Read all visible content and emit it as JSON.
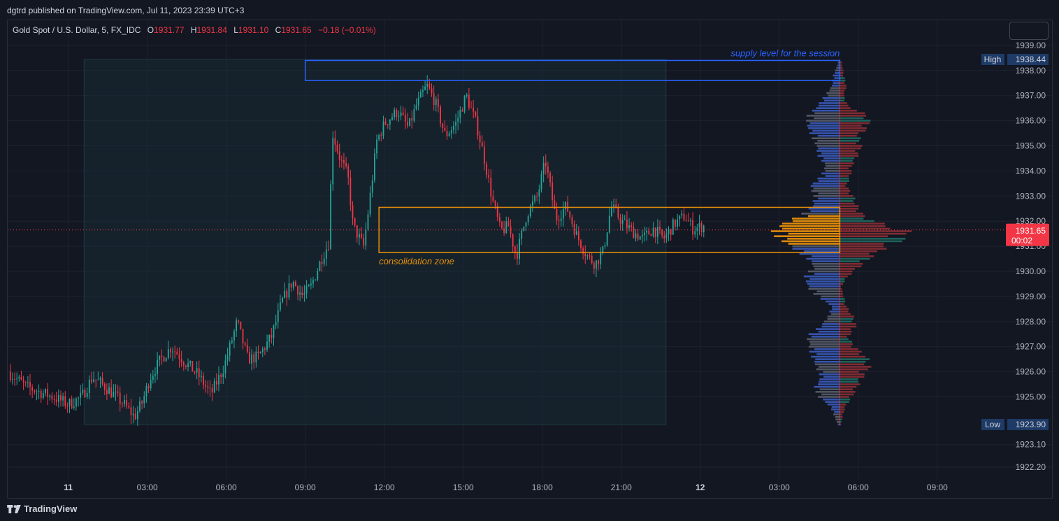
{
  "header": {
    "published": "dgtrd published on TradingView.com, Jul 11, 2023 23:39 UTC+3"
  },
  "legend": {
    "symbol": "Gold Spot / U.S. Dollar, 5, FX_IDC",
    "o_label": "O",
    "o": "1931.77",
    "h_label": "H",
    "h": "1931.84",
    "l_label": "L",
    "l": "1931.10",
    "c_label": "C",
    "c": "1931.65",
    "change": "−0.18 (−0.01%)"
  },
  "footer": {
    "brand": "TradingView"
  },
  "colors": {
    "up": "#26a69a",
    "down": "#f23645",
    "vp_buy": "#3d5fc4",
    "vp_sell": "#8b2e34",
    "vp_poc": "#e8900a",
    "supply": "#2962ff",
    "zone": "#e8900a"
  },
  "chart_data": {
    "type": "candlestick",
    "interval": "5",
    "yaxis": {
      "ticks": [
        "1922.20",
        "1923.10",
        "1925.00",
        "1926.00",
        "1927.00",
        "1928.00",
        "1929.00",
        "1930.00",
        "1931.00",
        "1932.00",
        "1933.00",
        "1934.00",
        "1935.00",
        "1936.00",
        "1937.00",
        "1938.00",
        "1939.00"
      ],
      "ylim": [
        1921.7,
        1940.0
      ]
    },
    "xaxis": {
      "ticks": [
        "11",
        "03:00",
        "06:00",
        "09:00",
        "12:00",
        "15:00",
        "18:00",
        "21:00",
        "12",
        "03:00",
        "06:00",
        "09:00"
      ],
      "tick_hours": [
        0,
        3,
        6,
        9,
        12,
        15,
        18,
        21,
        24,
        27,
        30,
        33
      ],
      "bold_ticks": [
        "11",
        "12"
      ],
      "xlim_hours": [
        -2.3,
        35.5
      ]
    },
    "price_path": [
      [
        -2.2,
        1926.0
      ],
      [
        -1.5,
        1925.4
      ],
      [
        -0.5,
        1925.0
      ],
      [
        0.1,
        1924.7
      ],
      [
        0.6,
        1925.0
      ],
      [
        1.0,
        1925.8
      ],
      [
        1.6,
        1925.3
      ],
      [
        2.2,
        1924.7
      ],
      [
        2.6,
        1924.2
      ],
      [
        2.9,
        1924.8
      ],
      [
        3.2,
        1925.8
      ],
      [
        3.6,
        1926.5
      ],
      [
        4.0,
        1927.0
      ],
      [
        4.5,
        1926.4
      ],
      [
        5.0,
        1925.9
      ],
      [
        5.5,
        1925.1
      ],
      [
        6.0,
        1926.2
      ],
      [
        6.5,
        1928.0
      ],
      [
        6.9,
        1926.5
      ],
      [
        7.3,
        1926.6
      ],
      [
        7.8,
        1927.4
      ],
      [
        8.2,
        1928.8
      ],
      [
        8.6,
        1929.6
      ],
      [
        9.0,
        1929.0
      ],
      [
        9.3,
        1929.4
      ],
      [
        9.7,
        1930.5
      ],
      [
        10.0,
        1931.2
      ],
      [
        10.1,
        1935.6
      ],
      [
        10.4,
        1934.5
      ],
      [
        10.7,
        1933.8
      ],
      [
        10.9,
        1931.8
      ],
      [
        11.3,
        1931.0
      ],
      [
        11.5,
        1932.6
      ],
      [
        11.8,
        1935.2
      ],
      [
        12.1,
        1935.9
      ],
      [
        12.6,
        1936.4
      ],
      [
        13.0,
        1935.7
      ],
      [
        13.3,
        1936.6
      ],
      [
        13.7,
        1937.4
      ],
      [
        14.0,
        1936.8
      ],
      [
        14.4,
        1935.4
      ],
      [
        14.8,
        1935.9
      ],
      [
        15.2,
        1937.0
      ],
      [
        15.6,
        1935.8
      ],
      [
        15.9,
        1934.4
      ],
      [
        16.2,
        1932.8
      ],
      [
        16.5,
        1931.6
      ],
      [
        16.8,
        1931.8
      ],
      [
        17.1,
        1930.6
      ],
      [
        17.5,
        1932.3
      ],
      [
        17.9,
        1933.0
      ],
      [
        18.2,
        1934.4
      ],
      [
        18.6,
        1932.1
      ],
      [
        19.0,
        1932.6
      ],
      [
        19.4,
        1931.4
      ],
      [
        19.8,
        1930.6
      ],
      [
        20.1,
        1930.3
      ],
      [
        20.4,
        1930.8
      ],
      [
        20.7,
        1932.6
      ],
      [
        21.1,
        1932.0
      ],
      [
        21.5,
        1931.6
      ],
      [
        21.9,
        1931.3
      ],
      [
        22.3,
        1931.7
      ],
      [
        22.7,
        1931.3
      ],
      [
        23.1,
        1931.9
      ],
      [
        23.5,
        1932.2
      ],
      [
        23.8,
        1931.7
      ],
      [
        24.2,
        1931.8
      ]
    ],
    "session_highlight": {
      "from_hour": 0.6,
      "to_hour": 22.7
    },
    "volume_profile": {
      "base_hour": 29.3,
      "buy_extent_hours": 2.3,
      "sell_extent_hours": 2.3,
      "poc_range": [
        1931.1,
        1932.2
      ],
      "buy": [
        [
          1923.9,
          0.03
        ],
        [
          1924.2,
          0.08
        ],
        [
          1924.6,
          0.14
        ],
        [
          1925.0,
          0.32
        ],
        [
          1925.4,
          0.38
        ],
        [
          1925.8,
          0.28
        ],
        [
          1926.2,
          0.36
        ],
        [
          1926.6,
          0.42
        ],
        [
          1927.0,
          0.46
        ],
        [
          1927.4,
          0.5
        ],
        [
          1927.8,
          0.3
        ],
        [
          1928.2,
          0.18
        ],
        [
          1928.6,
          0.12
        ],
        [
          1929.0,
          0.34
        ],
        [
          1929.4,
          0.5
        ],
        [
          1929.8,
          0.52
        ],
        [
          1930.2,
          0.4
        ],
        [
          1930.6,
          0.52
        ],
        [
          1931.0,
          0.76
        ],
        [
          1931.3,
          0.92
        ],
        [
          1931.6,
          1.0
        ],
        [
          1931.9,
          0.88
        ],
        [
          1932.2,
          0.6
        ],
        [
          1932.6,
          0.42
        ],
        [
          1933.0,
          0.38
        ],
        [
          1933.4,
          0.45
        ],
        [
          1933.8,
          0.28
        ],
        [
          1934.2,
          0.22
        ],
        [
          1934.6,
          0.32
        ],
        [
          1935.0,
          0.36
        ],
        [
          1935.4,
          0.42
        ],
        [
          1935.8,
          0.5
        ],
        [
          1936.2,
          0.48
        ],
        [
          1936.6,
          0.34
        ],
        [
          1937.0,
          0.22
        ],
        [
          1937.4,
          0.12
        ],
        [
          1937.8,
          0.1
        ],
        [
          1938.2,
          0.04
        ],
        [
          1938.44,
          0.02
        ]
      ],
      "sell": [
        [
          1923.9,
          0.02
        ],
        [
          1924.2,
          0.04
        ],
        [
          1924.6,
          0.08
        ],
        [
          1925.0,
          0.18
        ],
        [
          1925.4,
          0.26
        ],
        [
          1925.8,
          0.34
        ],
        [
          1926.2,
          0.44
        ],
        [
          1926.6,
          0.4
        ],
        [
          1927.0,
          0.22
        ],
        [
          1927.4,
          0.12
        ],
        [
          1927.8,
          0.24
        ],
        [
          1928.2,
          0.2
        ],
        [
          1928.6,
          0.1
        ],
        [
          1929.0,
          0.06
        ],
        [
          1929.4,
          0.02
        ],
        [
          1929.8,
          0.12
        ],
        [
          1930.2,
          0.3
        ],
        [
          1930.6,
          0.48
        ],
        [
          1931.0,
          0.7
        ],
        [
          1931.3,
          0.96
        ],
        [
          1931.6,
          1.0
        ],
        [
          1931.9,
          0.62
        ],
        [
          1932.2,
          0.36
        ],
        [
          1932.6,
          0.26
        ],
        [
          1933.0,
          0.2
        ],
        [
          1933.4,
          0.1
        ],
        [
          1933.8,
          0.16
        ],
        [
          1934.2,
          0.18
        ],
        [
          1934.6,
          0.26
        ],
        [
          1935.0,
          0.32
        ],
        [
          1935.4,
          0.28
        ],
        [
          1935.8,
          0.44
        ],
        [
          1936.2,
          0.42
        ],
        [
          1936.6,
          0.12
        ],
        [
          1937.0,
          0.06
        ],
        [
          1937.4,
          0.1
        ],
        [
          1937.8,
          0.06
        ],
        [
          1938.2,
          0.04
        ],
        [
          1938.44,
          0.02
        ]
      ]
    },
    "annotations": [
      {
        "kind": "rect",
        "name": "supply",
        "label": "supply level for the session",
        "from_hour": 9.0,
        "to_hour": 29.3,
        "y_low": 1937.6,
        "y_high": 1938.4
      },
      {
        "kind": "rect",
        "name": "consolidation",
        "label": "consolidation zone",
        "from_hour": 11.8,
        "to_hour": 29.3,
        "y_low": 1930.75,
        "y_high": 1932.55
      }
    ],
    "last_price": {
      "value": "1931.65",
      "countdown": "00:02"
    },
    "high_label": {
      "tag": "High",
      "value": "1938.44"
    },
    "low_label": {
      "tag": "Low",
      "value": "1923.90"
    }
  }
}
